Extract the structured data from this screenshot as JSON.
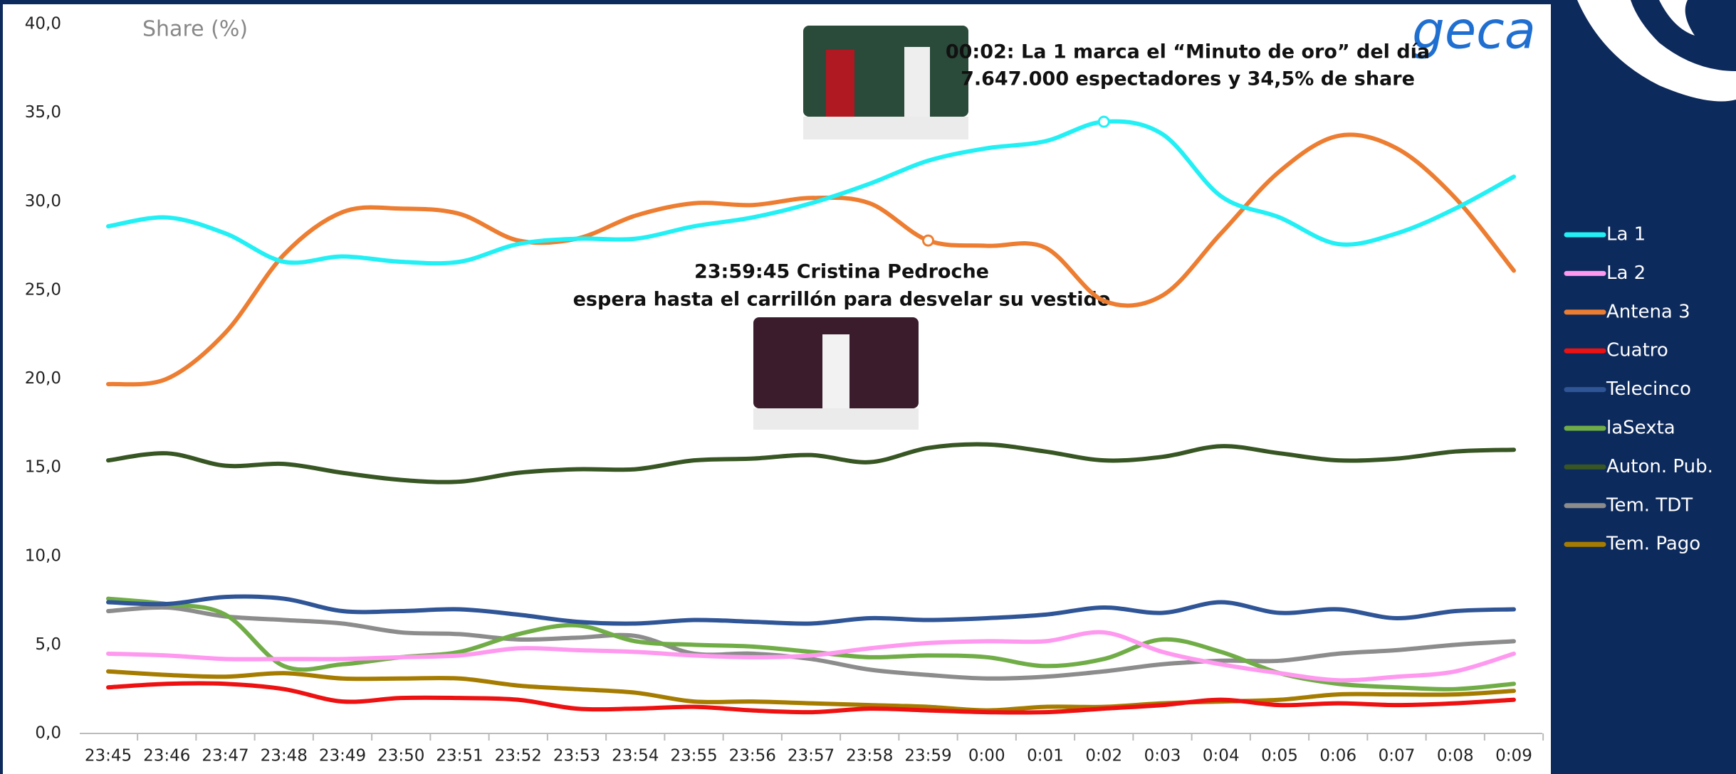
{
  "chart_data": {
    "type": "line",
    "y_label": "Share (%)",
    "logo": "geca",
    "annotations": [
      "00:02: La 1 marca el “Minuto de oro” del día",
      "7.647.000 espectadores y 34,5% de share",
      "23:59:45 Cristina Pedroche",
      "espera hasta el carrillón para desvelar su vestido"
    ],
    "categories": [
      "23:45",
      "23:46",
      "23:47",
      "23:48",
      "23:49",
      "23:50",
      "23:51",
      "23:52",
      "23:53",
      "23:54",
      "23:55",
      "23:56",
      "23:57",
      "23:58",
      "23:59",
      "0:00",
      "0:01",
      "0:02",
      "0:03",
      "0:04",
      "0:05",
      "0:06",
      "0:07",
      "0:08",
      "0:09"
    ],
    "ylim": [
      0,
      40
    ],
    "yticks": [
      {
        "value": 0,
        "label": "0,0"
      },
      {
        "value": 5,
        "label": "5,0"
      },
      {
        "value": 10,
        "label": "10,0"
      },
      {
        "value": 15,
        "label": "15,0"
      },
      {
        "value": 20,
        "label": "20,0"
      },
      {
        "value": 25,
        "label": "25,0"
      },
      {
        "value": 30,
        "label": "30,0"
      },
      {
        "value": 35,
        "label": "35,0"
      },
      {
        "value": 40,
        "label": "40,0"
      }
    ],
    "series": [
      {
        "name": "La 1",
        "color": "#22f0f5",
        "values": [
          28.6,
          29.1,
          28.2,
          26.6,
          26.9,
          26.6,
          26.6,
          27.6,
          27.9,
          27.9,
          28.6,
          29.1,
          29.9,
          31.0,
          32.3,
          33.0,
          33.4,
          34.5,
          33.8,
          30.3,
          29.1,
          27.6,
          28.2,
          29.6,
          31.4
        ]
      },
      {
        "name": "La 2",
        "color": "#ff99f0",
        "values": [
          4.5,
          4.4,
          4.2,
          4.2,
          4.2,
          4.3,
          4.4,
          4.8,
          4.7,
          4.6,
          4.4,
          4.3,
          4.4,
          4.8,
          5.1,
          5.2,
          5.2,
          5.7,
          4.6,
          3.9,
          3.4,
          3.0,
          3.2,
          3.5,
          4.5
        ]
      },
      {
        "name": "Antena 3",
        "color": "#ed7d31",
        "values": [
          19.7,
          20.0,
          22.6,
          27.0,
          29.4,
          29.6,
          29.3,
          27.8,
          27.9,
          29.2,
          29.9,
          29.8,
          30.2,
          29.9,
          27.8,
          27.5,
          27.4,
          24.4,
          24.7,
          28.2,
          31.7,
          33.7,
          33.0,
          30.2,
          26.1
        ]
      },
      {
        "name": "Cuatro",
        "color": "#ee1111",
        "values": [
          2.6,
          2.8,
          2.8,
          2.5,
          1.8,
          2.0,
          2.0,
          1.9,
          1.4,
          1.4,
          1.5,
          1.3,
          1.2,
          1.4,
          1.3,
          1.2,
          1.2,
          1.4,
          1.6,
          1.9,
          1.6,
          1.7,
          1.6,
          1.7,
          1.9
        ]
      },
      {
        "name": "Telecinco",
        "color": "#2f5597",
        "values": [
          7.4,
          7.3,
          7.7,
          7.6,
          6.9,
          6.9,
          7.0,
          6.7,
          6.3,
          6.2,
          6.4,
          6.3,
          6.2,
          6.5,
          6.4,
          6.5,
          6.7,
          7.1,
          6.8,
          7.4,
          6.8,
          7.0,
          6.5,
          6.9,
          7.0
        ]
      },
      {
        "name": "laSexta",
        "color": "#70ad47",
        "values": [
          7.6,
          7.3,
          6.7,
          3.8,
          3.9,
          4.3,
          4.6,
          5.6,
          6.1,
          5.2,
          5.0,
          4.9,
          4.6,
          4.3,
          4.4,
          4.3,
          3.8,
          4.2,
          5.3,
          4.6,
          3.4,
          2.8,
          2.6,
          2.5,
          2.8
        ]
      },
      {
        "name": "Auton. Pub.",
        "color": "#375623",
        "values": [
          15.4,
          15.8,
          15.1,
          15.2,
          14.7,
          14.3,
          14.2,
          14.7,
          14.9,
          14.9,
          15.4,
          15.5,
          15.7,
          15.3,
          16.1,
          16.3,
          15.9,
          15.4,
          15.6,
          16.2,
          15.8,
          15.4,
          15.5,
          15.9,
          16.0
        ]
      },
      {
        "name": "Tem. TDT",
        "color": "#8c8c8c",
        "values": [
          6.9,
          7.1,
          6.6,
          6.4,
          6.2,
          5.7,
          5.6,
          5.3,
          5.4,
          5.5,
          4.5,
          4.5,
          4.2,
          3.6,
          3.3,
          3.1,
          3.2,
          3.5,
          3.9,
          4.1,
          4.1,
          4.5,
          4.7,
          5.0,
          5.2
        ]
      },
      {
        "name": "Tem. Pago",
        "color": "#a67c00",
        "values": [
          3.5,
          3.3,
          3.2,
          3.4,
          3.1,
          3.1,
          3.1,
          2.7,
          2.5,
          2.3,
          1.8,
          1.8,
          1.7,
          1.6,
          1.5,
          1.3,
          1.5,
          1.5,
          1.7,
          1.8,
          1.9,
          2.2,
          2.2,
          2.2,
          2.4
        ]
      }
    ],
    "highlights": [
      {
        "series": 0,
        "index": 17
      },
      {
        "series": 2,
        "index": 14
      }
    ]
  }
}
